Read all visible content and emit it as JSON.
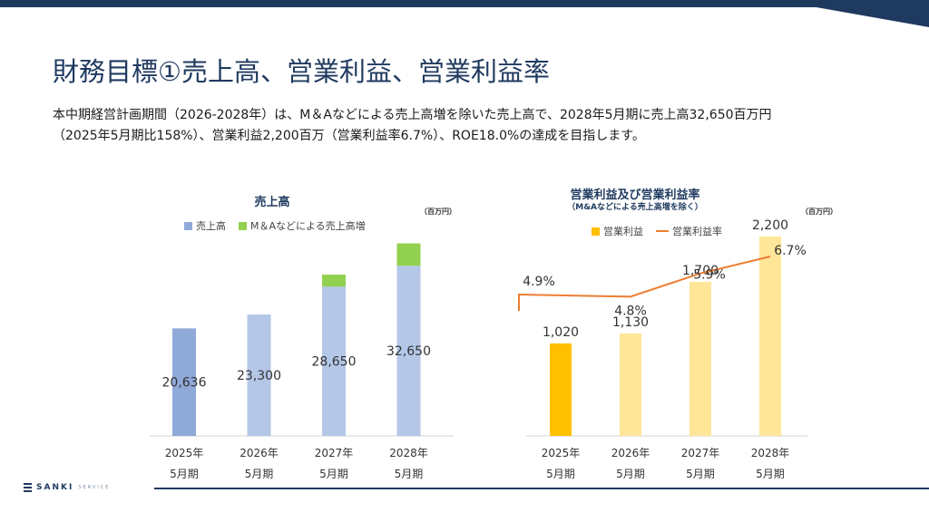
{
  "title": "財務目標①売上高、営業利益、営業利益率",
  "description": {
    "line1": "本中期経営計画期間（2026-2028年）は、M＆Aなどによる売上高増を除いた売上高で、2028年5月期に売上高32,650百万円",
    "line2": "（2025年5月期比158%）、営業利益2,200百万（営業利益率6.7%）、ROE18.0%の達成を目指します。"
  },
  "footer": {
    "logo_text": "SANKI",
    "logo_tail": "SERVICE"
  },
  "colors": {
    "brand": "#1f3a5f",
    "sales_2025": "#8fa9d9",
    "sales": "#b4c7e7",
    "ma": "#92d050",
    "op_2025": "#ffc000",
    "op": "#ffe699",
    "rate_line": "#ed7d31"
  },
  "chart_data": [
    {
      "type": "bar",
      "stacked": true,
      "title": "売上高",
      "unit": "（百万円）",
      "categories": [
        {
          "year": "2025年",
          "period": "5月期"
        },
        {
          "year": "2026年",
          "period": "5月期"
        },
        {
          "year": "2027年",
          "period": "5月期"
        },
        {
          "year": "2028年",
          "period": "5月期"
        }
      ],
      "series": [
        {
          "name": "売上高",
          "values": [
            20636,
            23300,
            28650,
            32650
          ],
          "labels": [
            "20,636",
            "23,300",
            "28,650",
            "32,650"
          ]
        },
        {
          "name": "M＆Aなどによる売上高増",
          "values": [
            0,
            0,
            2300,
            4300
          ]
        }
      ],
      "ylim": [
        0,
        40000
      ],
      "legend": "top",
      "grid": false
    },
    {
      "type": "bar+line",
      "title": "営業利益及び営業利益率",
      "subtitle": "（M&Aなどによる売上高増を除く）",
      "unit": "（百万円）",
      "categories": [
        {
          "year": "2025年",
          "period": "5月期"
        },
        {
          "year": "2026年",
          "period": "5月期"
        },
        {
          "year": "2027年",
          "period": "5月期"
        },
        {
          "year": "2028年",
          "period": "5月期"
        }
      ],
      "series": [
        {
          "name": "営業利益",
          "type": "bar",
          "values": [
            1020,
            1130,
            1700,
            2200
          ],
          "labels": [
            "1,020",
            "1,130",
            "1,700",
            "2,200"
          ]
        },
        {
          "name": "営業利益率",
          "type": "line",
          "values": [
            4.9,
            4.8,
            5.9,
            6.7
          ],
          "labels": [
            "4.9%",
            "4.8%",
            "5.9%",
            "6.7%"
          ]
        }
      ],
      "ylim": [
        0,
        2300
      ],
      "y2lim": [
        0,
        9.0
      ],
      "legend": "top",
      "grid": false
    }
  ]
}
